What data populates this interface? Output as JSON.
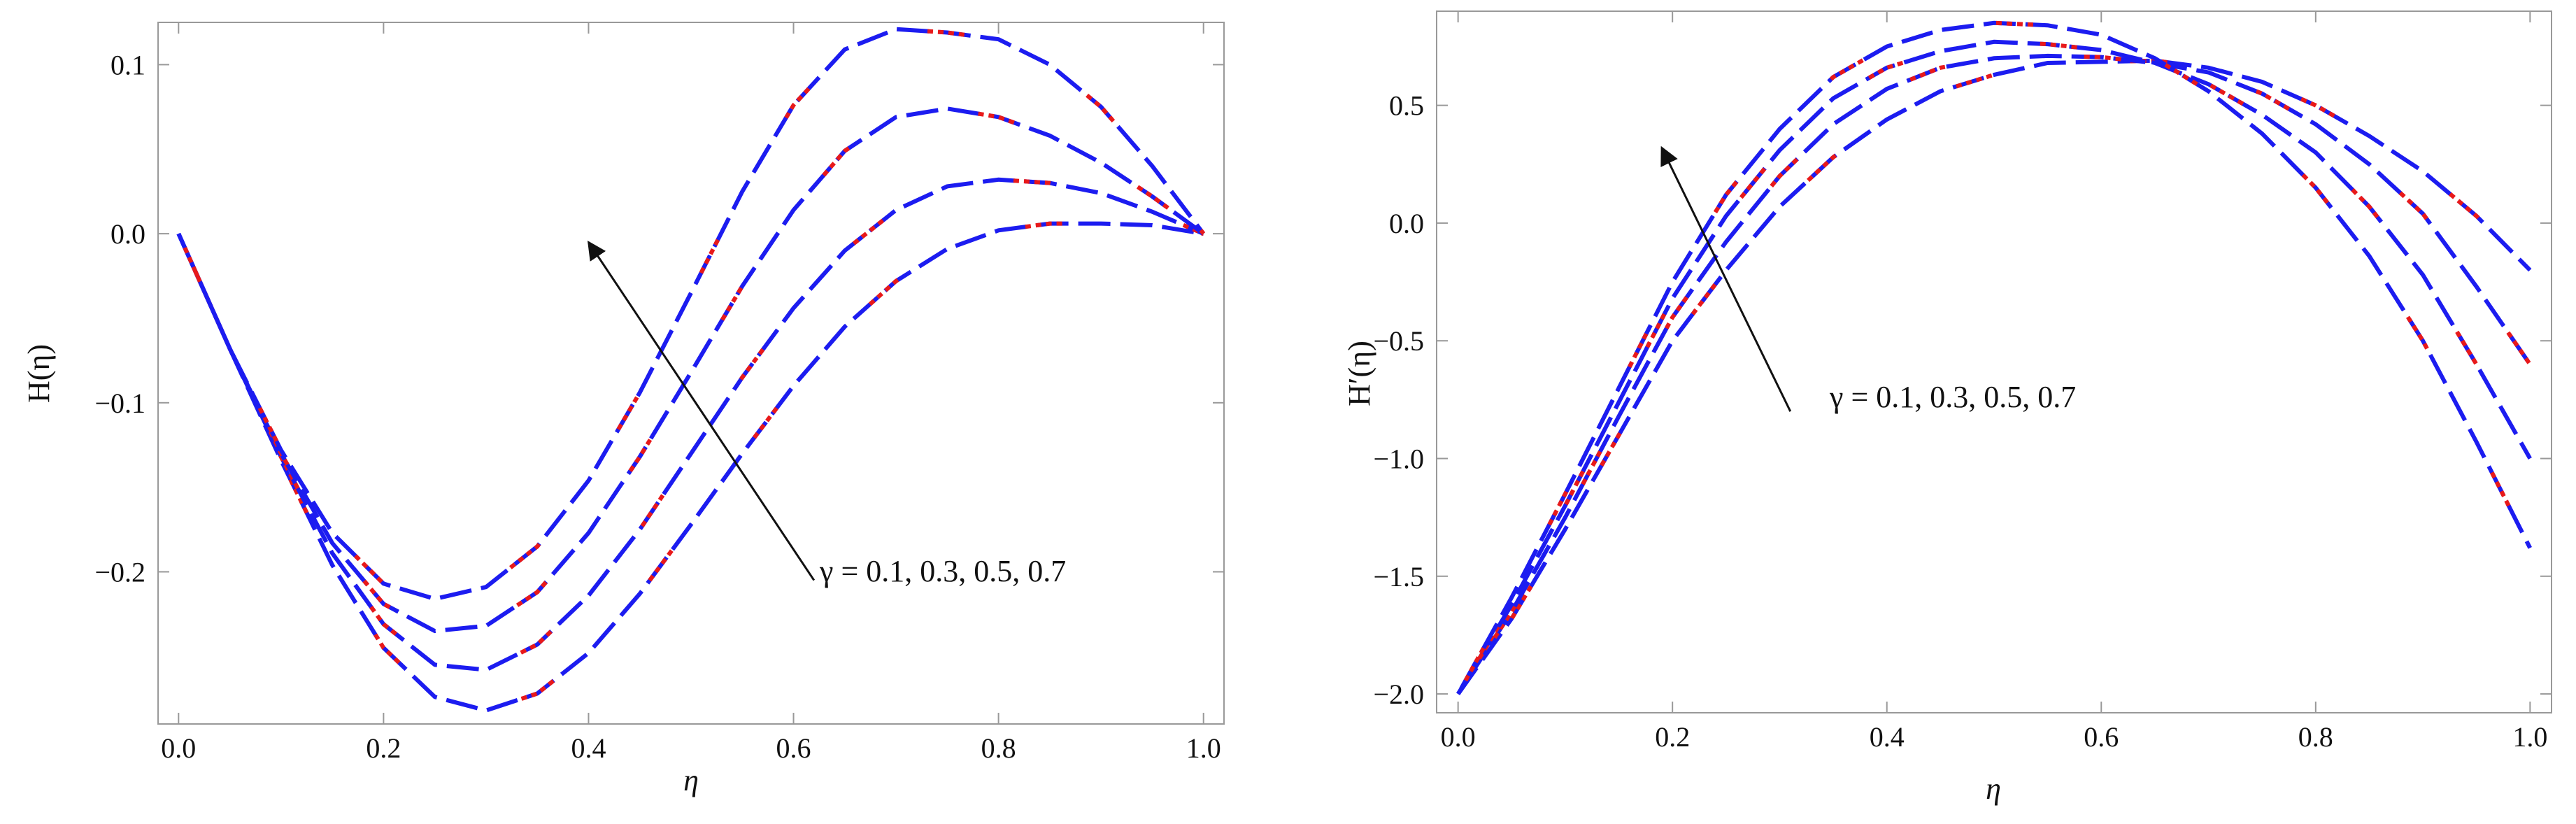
{
  "chart_data": [
    {
      "type": "line",
      "title": "",
      "xlabel": "η",
      "ylabel": "H(η)",
      "xlim": [
        -0.02,
        1.02
      ],
      "ylim": [
        -0.29,
        0.125
      ],
      "xticks": [
        0.0,
        0.2,
        0.4,
        0.6,
        0.8,
        1.0
      ],
      "xtick_labels": [
        "0.0",
        "0.2",
        "0.4",
        "0.6",
        "0.8",
        "1.0"
      ],
      "yticks": [
        -0.2,
        -0.1,
        0.0,
        0.1
      ],
      "ytick_labels": [
        "−0.2",
        "−0.1",
        "0.0",
        "0.1"
      ],
      "grid": false,
      "annotation": {
        "text": "γ = 0.1, 0.3, 0.5, 0.7",
        "arrow_from": [
          0.62,
          -0.205
        ],
        "arrow_to": [
          0.4,
          -0.005
        ]
      },
      "x": [
        0,
        0.05,
        0.1,
        0.15,
        0.2,
        0.25,
        0.3,
        0.35,
        0.4,
        0.45,
        0.5,
        0.55,
        0.6,
        0.65,
        0.7,
        0.75,
        0.8,
        0.85,
        0.9,
        0.95,
        1.0
      ],
      "series": [
        {
          "name": "γ = 0.1",
          "values": [
            0,
            -0.068,
            -0.134,
            -0.196,
            -0.245,
            -0.274,
            -0.282,
            -0.272,
            -0.248,
            -0.213,
            -0.172,
            -0.13,
            -0.09,
            -0.055,
            -0.028,
            -0.009,
            0.002,
            0.006,
            0.006,
            0.005,
            0.0
          ]
        },
        {
          "name": "γ = 0.3",
          "values": [
            0,
            -0.068,
            -0.132,
            -0.189,
            -0.231,
            -0.255,
            -0.258,
            -0.243,
            -0.214,
            -0.175,
            -0.13,
            -0.085,
            -0.044,
            -0.01,
            0.014,
            0.028,
            0.032,
            0.03,
            0.024,
            0.013,
            0.0
          ]
        },
        {
          "name": "γ = 0.5",
          "values": [
            0,
            -0.068,
            -0.13,
            -0.183,
            -0.219,
            -0.235,
            -0.232,
            -0.212,
            -0.177,
            -0.132,
            -0.082,
            -0.031,
            0.014,
            0.049,
            0.069,
            0.074,
            0.069,
            0.058,
            0.042,
            0.022,
            0.0
          ]
        },
        {
          "name": "γ = 0.7",
          "values": [
            0,
            -0.068,
            -0.128,
            -0.177,
            -0.207,
            -0.216,
            -0.209,
            -0.185,
            -0.146,
            -0.094,
            -0.035,
            0.025,
            0.076,
            0.109,
            0.121,
            0.119,
            0.115,
            0.1,
            0.075,
            0.04,
            0.0
          ]
        }
      ]
    },
    {
      "type": "line",
      "title": "",
      "xlabel": "η",
      "ylabel": "H′(η)",
      "xlim": [
        -0.02,
        1.02
      ],
      "ylim": [
        -2.08,
        0.9
      ],
      "xticks": [
        0.0,
        0.2,
        0.4,
        0.6,
        0.8,
        1.0
      ],
      "xtick_labels": [
        "0.0",
        "0.2",
        "0.4",
        "0.6",
        "0.8",
        "1.0"
      ],
      "yticks": [
        -2.0,
        -1.5,
        -1.0,
        -0.5,
        0.0,
        0.5
      ],
      "ytick_labels": [
        "−2.0",
        "−1.5",
        "−1.0",
        "−0.5",
        "0.0",
        "0.5"
      ],
      "grid": false,
      "annotation": {
        "text": "γ = 0.1, 0.3, 0.5, 0.7",
        "arrow_from": [
          0.31,
          -0.8
        ],
        "arrow_to": [
          0.19,
          0.32
        ]
      },
      "x": [
        0,
        0.05,
        0.1,
        0.15,
        0.2,
        0.25,
        0.3,
        0.35,
        0.4,
        0.45,
        0.5,
        0.55,
        0.6,
        0.65,
        0.7,
        0.75,
        0.8,
        0.85,
        0.9,
        0.95,
        1.0
      ],
      "series": [
        {
          "name": "γ = 0.1",
          "values": [
            -2.0,
            -1.68,
            -1.3,
            -0.9,
            -0.5,
            -0.2,
            0.07,
            0.28,
            0.44,
            0.56,
            0.63,
            0.68,
            0.685,
            0.69,
            0.66,
            0.6,
            0.5,
            0.37,
            0.22,
            0.03,
            -0.2
          ]
        },
        {
          "name": "γ = 0.3",
          "values": [
            -2.0,
            -1.65,
            -1.25,
            -0.82,
            -0.4,
            -0.08,
            0.2,
            0.42,
            0.57,
            0.66,
            0.7,
            0.71,
            0.705,
            0.68,
            0.64,
            0.55,
            0.42,
            0.25,
            0.04,
            -0.27,
            -0.6
          ]
        },
        {
          "name": "γ = 0.5",
          "values": [
            -2.0,
            -1.62,
            -1.2,
            -0.76,
            -0.32,
            0.03,
            0.31,
            0.53,
            0.66,
            0.73,
            0.77,
            0.76,
            0.735,
            0.68,
            0.59,
            0.46,
            0.3,
            0.07,
            -0.22,
            -0.6,
            -1.0
          ]
        },
        {
          "name": "γ = 0.7",
          "values": [
            -2.0,
            -1.59,
            -1.15,
            -0.7,
            -0.25,
            0.12,
            0.4,
            0.62,
            0.75,
            0.82,
            0.85,
            0.84,
            0.8,
            0.7,
            0.56,
            0.38,
            0.15,
            -0.14,
            -0.5,
            -0.93,
            -1.38
          ]
        }
      ]
    }
  ],
  "style": {
    "series_color": "#1c1cf0",
    "alt_dash_color": "#e8191a",
    "frame_color": "#999999",
    "arrow_color": "#111111"
  }
}
